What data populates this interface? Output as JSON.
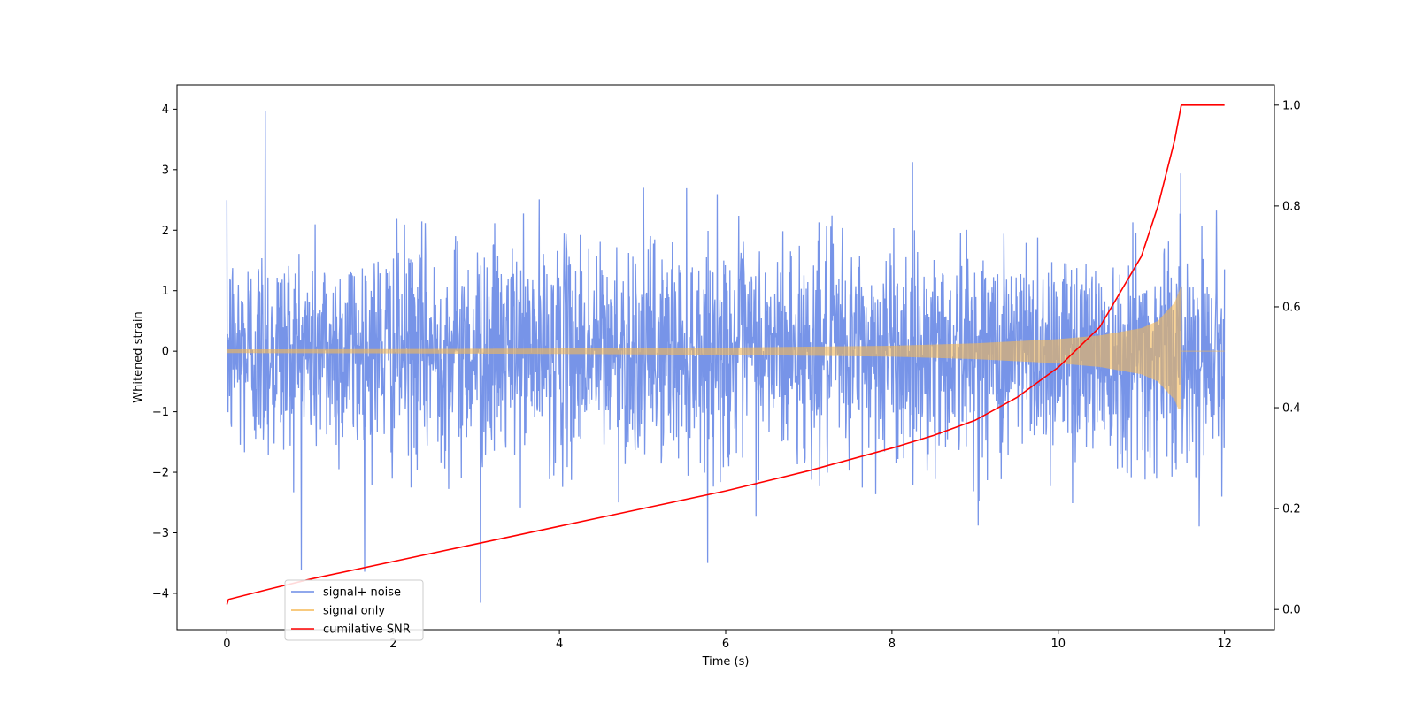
{
  "chart_data": {
    "type": "line",
    "xlabel": "Time (s)",
    "ylabel": "Whitened strain",
    "y2label": "",
    "xlim": [
      -0.6,
      12.6
    ],
    "ylim": [
      -4.6,
      4.4
    ],
    "y2lim": [
      -0.04,
      1.04
    ],
    "x_ticks": [
      0,
      2,
      4,
      6,
      8,
      10,
      12
    ],
    "y_ticks": [
      -4,
      -3,
      -2,
      -1,
      0,
      1,
      2,
      3,
      4
    ],
    "y2_ticks": [
      0.0,
      0.2,
      0.4,
      0.6,
      0.8,
      1.0
    ],
    "x_tick_labels": [
      "0",
      "2",
      "4",
      "6",
      "8",
      "10",
      "12"
    ],
    "y_tick_labels": [
      "−4",
      "−3",
      "−2",
      "−1",
      "0",
      "1",
      "2",
      "3",
      "4"
    ],
    "y2_tick_labels": [
      "0.0",
      "0.2",
      "0.4",
      "0.6",
      "0.8",
      "1.0"
    ],
    "grid": false,
    "legend_position": "lower-left",
    "series": [
      {
        "name": "signal+ noise",
        "color": "#6B8BE6",
        "axis": "left",
        "description_values": "whitened noise, approximately unit variance, peaks reach about ±4",
        "range": [
          0,
          12
        ],
        "extremes": {
          "max": 3.98,
          "min": -4.15
        },
        "noise_std": 0.9
      },
      {
        "name": "signal only",
        "color": "#F5B955",
        "axis": "left",
        "range": [
          0,
          11.48
        ],
        "envelope": {
          "t": [
            0,
            2,
            4,
            6,
            8,
            9,
            10,
            10.5,
            11,
            11.2,
            11.4,
            11.48
          ],
          "amp": [
            0.03,
            0.035,
            0.045,
            0.06,
            0.09,
            0.13,
            0.2,
            0.26,
            0.38,
            0.5,
            0.8,
            1.08
          ]
        },
        "tail_level": 0.0
      },
      {
        "name": "cumilative SNR",
        "color": "#FF0000",
        "axis": "right",
        "x": [
          0,
          0.02,
          0.5,
          1,
          2,
          3,
          4,
          5,
          6,
          7,
          8,
          8.5,
          9,
          9.5,
          10,
          10.5,
          11,
          11.2,
          11.4,
          11.48,
          12
        ],
        "y": [
          0.01,
          0.02,
          0.04,
          0.06,
          0.095,
          0.13,
          0.165,
          0.2,
          0.235,
          0.275,
          0.32,
          0.345,
          0.375,
          0.42,
          0.48,
          0.56,
          0.7,
          0.8,
          0.93,
          1.0,
          1.0
        ]
      }
    ]
  }
}
